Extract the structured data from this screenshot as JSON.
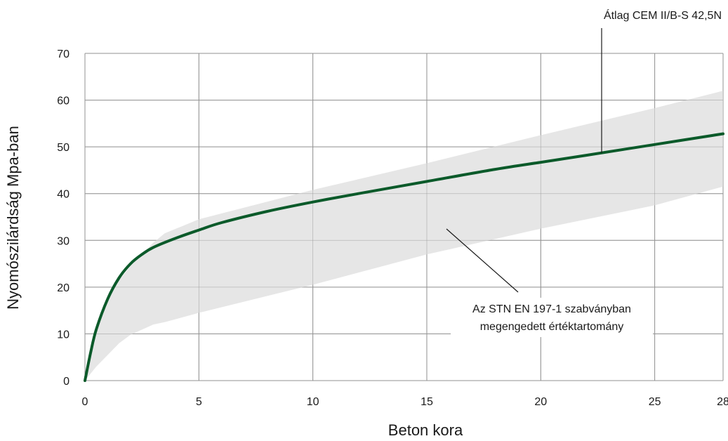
{
  "chart_data": {
    "type": "area",
    "xlabel": "Beton kora",
    "ylabel": "Nyomószilárdság Mpa-ban",
    "xlim": [
      0,
      28
    ],
    "ylim": [
      0,
      70
    ],
    "x_ticks": [
      0,
      5,
      10,
      15,
      20,
      25,
      28
    ],
    "y_ticks": [
      0,
      10,
      20,
      30,
      40,
      50,
      60,
      70
    ],
    "grid": true,
    "series": [
      {
        "name": "Átlag CEM II/B-S 42,5N",
        "type": "line",
        "color": "#0b5a2a",
        "x": [
          0,
          0.25,
          0.5,
          1,
          1.5,
          2,
          2.5,
          3,
          4,
          5,
          6,
          8,
          10,
          12,
          15,
          18,
          20,
          22,
          25,
          28
        ],
        "y": [
          0,
          6,
          11,
          17.5,
          22,
          25,
          27,
          28.5,
          30.5,
          32.2,
          33.8,
          36.2,
          38.2,
          40,
          42.6,
          45.2,
          46.7,
          48.2,
          50.5,
          52.8
        ]
      },
      {
        "name": "Az STN EN 197-1 szabványban megengedett értéktartomány",
        "type": "band",
        "color": "#e6e6e6",
        "x": [
          0,
          0.5,
          1,
          1.5,
          2,
          3,
          3.5,
          5,
          10,
          15,
          20,
          25,
          28
        ],
        "upper": [
          0,
          12,
          17.5,
          21.5,
          24.5,
          29.5,
          31.5,
          34.5,
          40.8,
          46.5,
          52.5,
          58.3,
          62
        ],
        "lower": [
          0,
          3,
          5.5,
          8,
          9.8,
          12,
          12.5,
          14.5,
          20.5,
          27,
          32.5,
          37.5,
          41.5
        ]
      }
    ],
    "annotations": [
      {
        "line1": "Átlag CEM II/B-S 42,5N",
        "line2": ""
      },
      {
        "line1": "Az STN EN 197-1 szabványban",
        "line2": "megengedett értéktartomány"
      }
    ]
  }
}
